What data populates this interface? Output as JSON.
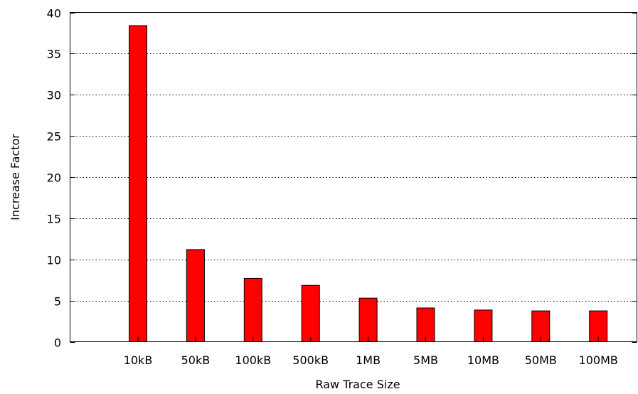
{
  "chart_data": {
    "type": "bar",
    "categories": [
      "10kB",
      "50kB",
      "100kB",
      "500kB",
      "1MB",
      "5MB",
      "10MB",
      "50MB",
      "100MB"
    ],
    "values": [
      38.4,
      11.2,
      7.7,
      6.85,
      5.3,
      4.1,
      3.85,
      3.75,
      3.75
    ],
    "xlabel": "Raw Trace Size",
    "ylabel": "Increase Factor",
    "ylim": [
      0,
      40
    ],
    "yticks": [
      0,
      5,
      10,
      15,
      20,
      25,
      30,
      35,
      40
    ],
    "grid": "horizontal-dotted",
    "colors": {
      "bar": "#ff0000",
      "bar_edge": "#000000"
    }
  }
}
